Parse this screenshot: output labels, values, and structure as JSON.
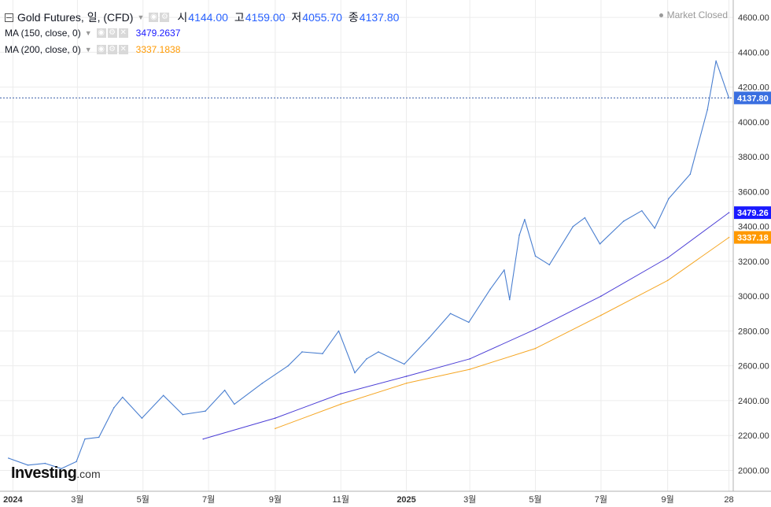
{
  "header": {
    "symbol": "Gold Futures, 일, (CFD)",
    "open_label": "시",
    "open_value": "4144.00",
    "high_label": "고",
    "high_value": "4159.00",
    "low_label": "저",
    "low_value": "4055.70",
    "close_label": "종",
    "close_value": "4137.80",
    "status": "Market Closed"
  },
  "indicators": [
    {
      "label": "MA (150, close, 0)",
      "value": "3479.2637",
      "color": "#1a1aff"
    },
    {
      "label": "MA (200, close, 0)",
      "value": "3337.1838",
      "color": "#ff9900"
    }
  ],
  "logo": {
    "brand": "Investing",
    "suffix": ".com"
  },
  "colors": {
    "price": "#4a7fd0",
    "ma150": "#4b3ed6",
    "ma200": "#f5a623",
    "grid": "#ececec",
    "last_price_bg": "#3a6fe0"
  },
  "chart_data": {
    "type": "line",
    "title": "Gold Futures, 일, (CFD)",
    "ylim": [
      1880,
      4700
    ],
    "yticks": [
      2000,
      2200,
      2400,
      2600,
      2800,
      3000,
      3200,
      3400,
      3600,
      3800,
      4000,
      4200,
      4400,
      4600
    ],
    "x_tick_labels": [
      "2024",
      "3월",
      "5월",
      "7월",
      "9월",
      "11월",
      "2025",
      "3월",
      "5월",
      "7월",
      "9월",
      "28"
    ],
    "grid": true,
    "legend": "top-left",
    "series": [
      {
        "name": "Gold Futures",
        "x": [
          "2023-12-28",
          "2024-01-15",
          "2024-01-31",
          "2024-02-15",
          "2024-02-29",
          "2024-03-08",
          "2024-03-21",
          "2024-04-04",
          "2024-04-12",
          "2024-04-30",
          "2024-05-20",
          "2024-06-07",
          "2024-06-28",
          "2024-07-16",
          "2024-07-25",
          "2024-08-20",
          "2024-09-13",
          "2024-09-26",
          "2024-10-15",
          "2024-10-30",
          "2024-11-14",
          "2024-11-25",
          "2024-12-06",
          "2024-12-30",
          "2025-01-22",
          "2025-02-11",
          "2025-02-28",
          "2025-03-20",
          "2025-04-02",
          "2025-04-07",
          "2025-04-16",
          "2025-04-21",
          "2025-05-01",
          "2025-05-14",
          "2025-06-05",
          "2025-06-16",
          "2025-06-30",
          "2025-07-22",
          "2025-08-08",
          "2025-08-20",
          "2025-09-02",
          "2025-09-22",
          "2025-10-08",
          "2025-10-16",
          "2025-10-20",
          "2025-10-28"
        ],
        "values": [
          2070,
          2030,
          2040,
          2010,
          2050,
          2180,
          2190,
          2360,
          2420,
          2300,
          2430,
          2320,
          2340,
          2460,
          2380,
          2500,
          2600,
          2680,
          2670,
          2800,
          2560,
          2640,
          2680,
          2610,
          2760,
          2900,
          2850,
          3040,
          3150,
          2980,
          3350,
          3440,
          3230,
          3180,
          3400,
          3450,
          3300,
          3430,
          3490,
          3390,
          3560,
          3700,
          4070,
          4350,
          4280,
          4137.8
        ]
      },
      {
        "name": "MA (150, close, 0)",
        "x": [
          "2024-06-26",
          "2024-09-01",
          "2024-11-01",
          "2025-01-01",
          "2025-03-01",
          "2025-05-01",
          "2025-07-01",
          "2025-09-01",
          "2025-10-28"
        ],
        "values": [
          2180,
          2300,
          2440,
          2540,
          2640,
          2810,
          3000,
          3220,
          3479.26
        ]
      },
      {
        "name": "MA (200, close, 0)",
        "x": [
          "2024-09-01",
          "2024-11-01",
          "2025-01-01",
          "2025-03-01",
          "2025-05-01",
          "2025-07-01",
          "2025-09-01",
          "2025-10-28"
        ],
        "values": [
          2240,
          2380,
          2500,
          2580,
          2700,
          2890,
          3090,
          3337.18
        ]
      }
    ],
    "last_price": "4137.80",
    "ma150_last": "3479.26",
    "ma200_last": "3337.18"
  }
}
